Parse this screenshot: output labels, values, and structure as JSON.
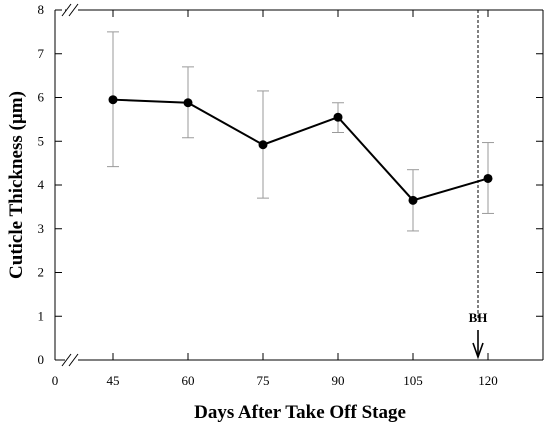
{
  "chart_data": {
    "type": "line",
    "xlabel": "Days After Take Off Stage",
    "ylabel": "Cuticle Thickness (µm)",
    "x_ticks": [
      0,
      45,
      60,
      75,
      90,
      105,
      120
    ],
    "y_ticks": [
      0,
      1,
      2,
      3,
      4,
      5,
      6,
      7,
      8
    ],
    "x_axis_break": "between 0 and 45",
    "ylim": [
      0,
      8
    ],
    "grid": false,
    "series": [
      {
        "x": [
          45,
          60,
          75,
          90,
          105,
          120
        ],
        "y": [
          5.95,
          5.88,
          4.92,
          5.55,
          3.65,
          4.15
        ],
        "error_low": [
          4.42,
          5.08,
          3.7,
          5.2,
          2.95,
          3.35
        ],
        "error_high": [
          7.5,
          6.7,
          6.15,
          5.88,
          4.35,
          4.97
        ]
      }
    ],
    "annotations": [
      {
        "text": "BH",
        "x": 118,
        "style": "dashed vertical line with downward arrow"
      }
    ],
    "colors": {
      "line": "#000000",
      "error_bar": "#9a9a9a",
      "marker": "#000000"
    }
  }
}
